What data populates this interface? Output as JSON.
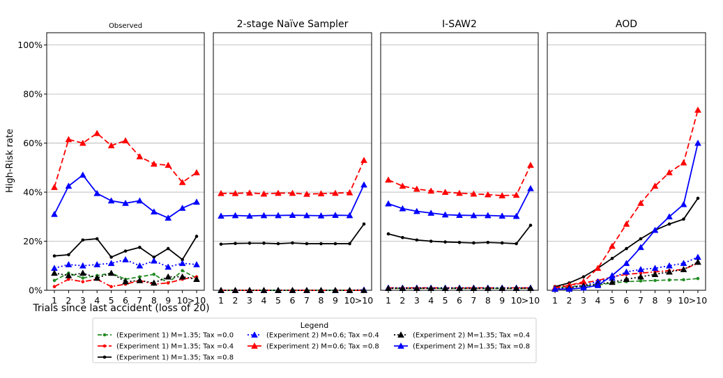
{
  "figure": {
    "ylabel": "High-Risk rate",
    "xlabel": "Trials since last accident (loss of 20)",
    "legend_title": "Legend"
  },
  "chart_data": {
    "type": "line",
    "categories": [
      "1",
      "2",
      "3",
      "4",
      "5",
      "6",
      "7",
      "8",
      "9",
      "10",
      ">10"
    ],
    "ylim": [
      0,
      1.05
    ],
    "yticks": [
      0,
      0.2,
      0.4,
      0.6,
      0.8,
      1.0
    ],
    "ytick_labels": [
      "0%",
      "20%",
      "40%",
      "60%",
      "80%",
      "100%"
    ],
    "grid": "horizontal",
    "legend_position": "bottom-center",
    "series_styles": [
      {
        "name": "(Experiment 1) M=1.35; Tax =0.0",
        "color": "#228B22",
        "dash": "6,3",
        "marker": "circle"
      },
      {
        "name": "(Experiment 1) M=1.35; Tax =0.4",
        "color": "#ff0000",
        "dash": "8,3,2,3",
        "marker": "circle"
      },
      {
        "name": "(Experiment 1) M=1.35; Tax =0.8",
        "color": "#000000",
        "dash": "",
        "marker": "circle"
      },
      {
        "name": "(Experiment 2) M=0.6; Tax =0.4",
        "color": "#0000ff",
        "dash": "2,3",
        "marker": "triangle"
      },
      {
        "name": "(Experiment 2) M=0.6; Tax =0.8",
        "color": "#ff0000",
        "dash": "8,4",
        "marker": "triangle"
      },
      {
        "name": "(Experiment 2) M=1.35; Tax =0.4",
        "color": "#000000",
        "dash": "2,3",
        "marker": "triangle"
      },
      {
        "name": "(Experiment 2) M=1.35; Tax =0.8",
        "color": "#0000ff",
        "dash": "",
        "marker": "triangle"
      }
    ],
    "panels": [
      {
        "title": "Observed",
        "show_xlabel": true,
        "series": [
          {
            "style": 0,
            "values": [
              0.04,
              0.07,
              0.05,
              0.06,
              0.07,
              0.045,
              0.055,
              0.065,
              0.03,
              0.08,
              0.05
            ]
          },
          {
            "style": 1,
            "values": [
              0.015,
              0.045,
              0.035,
              0.045,
              0.015,
              0.025,
              0.04,
              0.025,
              0.03,
              0.045,
              0.055
            ]
          },
          {
            "style": 2,
            "values": [
              0.14,
              0.145,
              0.205,
              0.21,
              0.135,
              0.16,
              0.175,
              0.135,
              0.17,
              0.125,
              0.22
            ]
          },
          {
            "style": 3,
            "values": [
              0.09,
              0.105,
              0.1,
              0.105,
              0.11,
              0.125,
              0.1,
              0.12,
              0.095,
              0.11,
              0.105
            ]
          },
          {
            "style": 4,
            "values": [
              0.42,
              0.615,
              0.6,
              0.64,
              0.59,
              0.61,
              0.545,
              0.515,
              0.51,
              0.44,
              0.48
            ]
          },
          {
            "style": 5,
            "values": [
              0.07,
              0.06,
              0.07,
              0.05,
              0.07,
              0.035,
              0.04,
              0.03,
              0.055,
              0.055,
              0.045
            ]
          },
          {
            "style": 6,
            "values": [
              0.31,
              0.425,
              0.47,
              0.395,
              0.365,
              0.355,
              0.365,
              0.32,
              0.295,
              0.335,
              0.36
            ]
          }
        ]
      },
      {
        "title": "2-stage Naïve Sampler",
        "show_xlabel": false,
        "series": [
          {
            "style": 0,
            "values": [
              0.0,
              0.0,
              0.0,
              0.0,
              0.0,
              0.0,
              0.0,
              0.0,
              0.0,
              0.0,
              0.0
            ]
          },
          {
            "style": 1,
            "values": [
              0.0,
              0.0,
              0.0,
              0.0,
              0.0,
              0.0,
              0.0,
              0.0,
              0.0,
              0.0,
              0.0
            ]
          },
          {
            "style": 2,
            "values": [
              0.188,
              0.191,
              0.192,
              0.192,
              0.19,
              0.193,
              0.19,
              0.19,
              0.19,
              0.19,
              0.27
            ]
          },
          {
            "style": 3,
            "values": [
              0.0,
              0.0,
              0.0,
              0.0,
              0.0,
              0.0,
              0.0,
              0.0,
              0.0,
              0.0,
              0.002
            ]
          },
          {
            "style": 4,
            "values": [
              0.395,
              0.395,
              0.397,
              0.393,
              0.396,
              0.396,
              0.392,
              0.394,
              0.396,
              0.398,
              0.53
            ]
          },
          {
            "style": 5,
            "values": [
              0.0,
              0.0,
              0.0,
              0.0,
              0.0,
              0.0,
              0.0,
              0.0,
              0.0,
              0.0,
              0.0
            ]
          },
          {
            "style": 6,
            "values": [
              0.303,
              0.305,
              0.303,
              0.305,
              0.305,
              0.306,
              0.305,
              0.304,
              0.306,
              0.305,
              0.43
            ]
          }
        ]
      },
      {
        "title": "I-SAW2",
        "show_xlabel": false,
        "series": [
          {
            "style": 0,
            "values": [
              0.008,
              0.008,
              0.008,
              0.008,
              0.008,
              0.008,
              0.008,
              0.008,
              0.008,
              0.008,
              0.008
            ]
          },
          {
            "style": 1,
            "values": [
              0.01,
              0.01,
              0.01,
              0.01,
              0.01,
              0.01,
              0.01,
              0.01,
              0.01,
              0.01,
              0.01
            ]
          },
          {
            "style": 2,
            "values": [
              0.23,
              0.215,
              0.205,
              0.2,
              0.197,
              0.195,
              0.193,
              0.195,
              0.193,
              0.19,
              0.265
            ]
          },
          {
            "style": 3,
            "values": [
              0.01,
              0.01,
              0.01,
              0.01,
              0.01,
              0.01,
              0.01,
              0.01,
              0.01,
              0.01,
              0.01
            ]
          },
          {
            "style": 4,
            "values": [
              0.45,
              0.425,
              0.413,
              0.405,
              0.4,
              0.396,
              0.393,
              0.39,
              0.386,
              0.388,
              0.51
            ]
          },
          {
            "style": 5,
            "values": [
              0.008,
              0.008,
              0.008,
              0.008,
              0.008,
              0.008,
              0.008,
              0.008,
              0.008,
              0.008,
              0.008
            ]
          },
          {
            "style": 6,
            "values": [
              0.353,
              0.333,
              0.322,
              0.315,
              0.308,
              0.306,
              0.305,
              0.305,
              0.303,
              0.302,
              0.415
            ]
          }
        ]
      },
      {
        "title": "AOD",
        "show_xlabel": false,
        "series": [
          {
            "style": 0,
            "values": [
              0.01,
              0.015,
              0.018,
              0.022,
              0.03,
              0.035,
              0.038,
              0.04,
              0.042,
              0.043,
              0.048
            ]
          },
          {
            "style": 1,
            "values": [
              0.015,
              0.02,
              0.03,
              0.04,
              0.055,
              0.065,
              0.07,
              0.075,
              0.08,
              0.085,
              0.11
            ]
          },
          {
            "style": 2,
            "values": [
              0.015,
              0.03,
              0.055,
              0.09,
              0.13,
              0.17,
              0.21,
              0.245,
              0.27,
              0.29,
              0.375
            ]
          },
          {
            "style": 3,
            "values": [
              0.005,
              0.012,
              0.02,
              0.035,
              0.05,
              0.075,
              0.085,
              0.09,
              0.1,
              0.11,
              0.135
            ]
          },
          {
            "style": 4,
            "values": [
              0.01,
              0.02,
              0.035,
              0.09,
              0.18,
              0.27,
              0.355,
              0.425,
              0.48,
              0.52,
              0.735
            ]
          },
          {
            "style": 5,
            "values": [
              0.005,
              0.01,
              0.018,
              0.025,
              0.033,
              0.045,
              0.055,
              0.065,
              0.075,
              0.085,
              0.115
            ]
          },
          {
            "style": 6,
            "values": [
              0.005,
              0.005,
              0.01,
              0.02,
              0.06,
              0.11,
              0.175,
              0.245,
              0.3,
              0.35,
              0.6
            ]
          }
        ]
      }
    ]
  }
}
